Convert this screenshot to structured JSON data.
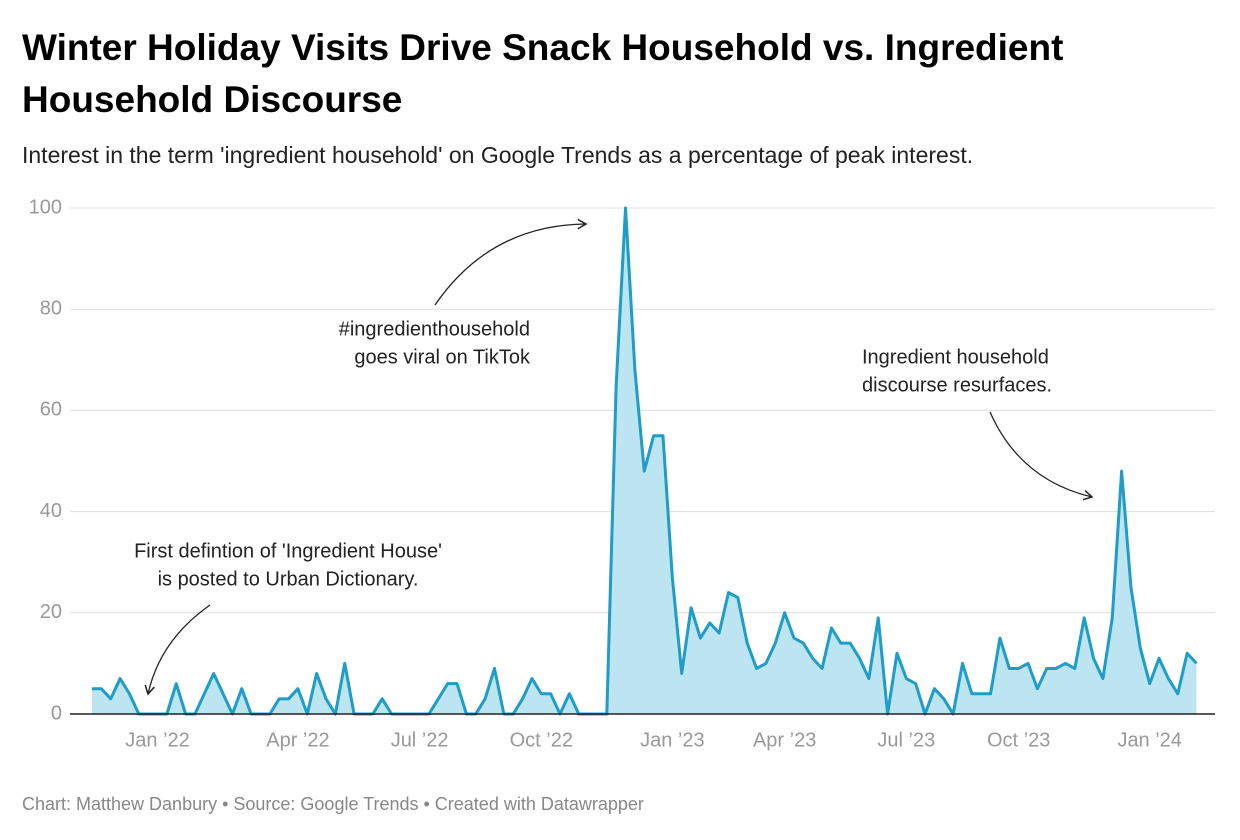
{
  "chart_data": {
    "type": "area",
    "title": "Winter Holiday Visits Drive Snack Household vs. Ingredient Household Discourse",
    "subtitle": "Interest in the term 'ingredient household' on Google Trends as a percentage of peak interest.",
    "source": "Chart: Matthew Danbury • Source: Google Trends • Created with Datawrapper",
    "categories": [
      null,
      null,
      null,
      null,
      null,
      null,
      null,
      "Jan ’22",
      null,
      null,
      null,
      null,
      null,
      null,
      null,
      null,
      null,
      null,
      null,
      null,
      null,
      null,
      "Apr ’22",
      null,
      null,
      null,
      null,
      null,
      null,
      null,
      null,
      null,
      null,
      null,
      null,
      "Jul ’22",
      null,
      null,
      null,
      null,
      null,
      null,
      null,
      null,
      null,
      null,
      null,
      null,
      "Oct ’22",
      null,
      null,
      null,
      null,
      null,
      null,
      null,
      null,
      null,
      null,
      null,
      null,
      null,
      "Jan ’23",
      null,
      null,
      null,
      null,
      null,
      null,
      null,
      null,
      null,
      null,
      null,
      "Apr ’23",
      null,
      null,
      null,
      null,
      null,
      null,
      null,
      null,
      null,
      null,
      null,
      null,
      "Jul ’23",
      null,
      null,
      null,
      null,
      null,
      null,
      null,
      null,
      null,
      null,
      null,
      "Oct ’23",
      null,
      null,
      null,
      null,
      null,
      null,
      null,
      null,
      null,
      null,
      null,
      null,
      null,
      "Jan ’24",
      null,
      null,
      null,
      null,
      null
    ],
    "series": [
      {
        "name": "ingredient household",
        "color": "#1f9cc8",
        "fill": "#bde4f1",
        "values": [
          5,
          5,
          3,
          7,
          4,
          0,
          0,
          0,
          0,
          6,
          0,
          0,
          4,
          8,
          4,
          0,
          5,
          0,
          0,
          0,
          3,
          3,
          5,
          0,
          8,
          3,
          0,
          10,
          0,
          0,
          0,
          3,
          0,
          0,
          0,
          0,
          0,
          3,
          6,
          6,
          0,
          0,
          3,
          9,
          0,
          0,
          3,
          7,
          4,
          4,
          0,
          4,
          0,
          0,
          0,
          0,
          65,
          100,
          68,
          48,
          55,
          55,
          27,
          8,
          21,
          15,
          18,
          16,
          24,
          23,
          14,
          9,
          10,
          14,
          20,
          15,
          14,
          11,
          9,
          17,
          14,
          14,
          11,
          7,
          19,
          0,
          12,
          7,
          6,
          0,
          5,
          3,
          0,
          10,
          4,
          4,
          4,
          15,
          9,
          9,
          10,
          5,
          9,
          9,
          10,
          9,
          19,
          11,
          7,
          19,
          48,
          25,
          13,
          6,
          11,
          7,
          4,
          12,
          10
        ]
      }
    ],
    "ylim": [
      0,
      100
    ],
    "yticks": [
      0,
      20,
      40,
      60,
      80,
      100
    ],
    "grid": true,
    "annotations": [
      {
        "lines": [
          "First defintion of 'Ingredient House'",
          "is posted to Urban Dictionary."
        ]
      },
      {
        "lines": [
          "#ingredienthousehold",
          "goes viral on TikTok"
        ]
      },
      {
        "lines": [
          "Ingredient household",
          "discourse resurfaces."
        ]
      }
    ]
  }
}
